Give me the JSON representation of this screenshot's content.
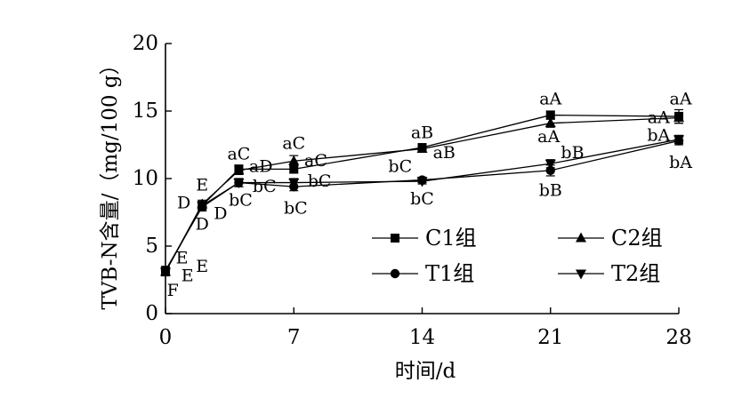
{
  "chart_data": {
    "type": "line",
    "title": "",
    "xlabel": "时间/d",
    "ylabel": "TVB-N含量/（mg/100 g）",
    "xlim": [
      0,
      28
    ],
    "ylim": [
      0,
      20
    ],
    "xticks": [
      0,
      7,
      14,
      21,
      28
    ],
    "xtick_labels": [
      "0",
      "7",
      "14",
      "21",
      "28"
    ],
    "yticks": [
      0,
      5,
      10,
      15,
      20
    ],
    "ytick_labels": [
      "0",
      "5",
      "10",
      "15",
      "20"
    ],
    "grid": false,
    "legend_placement": "bottom-right",
    "color": "#000000",
    "x": [
      0,
      2,
      4,
      7,
      14,
      21,
      28
    ],
    "series": [
      {
        "name": "C1组",
        "marker": "square",
        "values": [
          3.1,
          8.0,
          10.7,
          10.7,
          12.3,
          14.7,
          14.6
        ],
        "errors": [
          0.3,
          0.3,
          0.3,
          0.3,
          0.2,
          0.3,
          0.5
        ]
      },
      {
        "name": "C2组",
        "marker": "triangle-up",
        "values": [
          3.1,
          8.1,
          10.6,
          11.3,
          12.2,
          14.1,
          14.5
        ],
        "errors": [
          0.3,
          0.3,
          0.3,
          0.4,
          0.2,
          0.3,
          0.4
        ]
      },
      {
        "name": "T1组",
        "marker": "circle",
        "values": [
          3.2,
          7.9,
          9.7,
          9.4,
          9.9,
          10.6,
          12.8
        ],
        "errors": [
          0.3,
          0.3,
          0.3,
          0.3,
          0.2,
          0.4,
          0.3
        ]
      },
      {
        "name": "T2组",
        "marker": "triangle-down",
        "values": [
          3.1,
          8.0,
          9.7,
          9.7,
          9.8,
          11.1,
          12.9
        ],
        "errors": [
          0.3,
          0.3,
          0.3,
          0.3,
          0.2,
          0.3,
          0.3
        ]
      }
    ],
    "annotations": [
      {
        "text": "E",
        "x": 2.0,
        "y": 9.5
      },
      {
        "text": "D",
        "x": 1.0,
        "y": 8.2
      },
      {
        "text": "D",
        "x": 2.0,
        "y": 6.6
      },
      {
        "text": "D",
        "x": 3.0,
        "y": 7.4
      },
      {
        "text": "aC",
        "x": 4.0,
        "y": 11.8
      },
      {
        "text": "aD",
        "x": 5.2,
        "y": 10.9
      },
      {
        "text": "bC",
        "x": 5.4,
        "y": 9.4
      },
      {
        "text": "bC",
        "x": 4.1,
        "y": 8.4
      },
      {
        "text": "aC",
        "x": 7.0,
        "y": 12.6
      },
      {
        "text": "aC",
        "x": 8.2,
        "y": 11.3
      },
      {
        "text": "bC",
        "x": 8.4,
        "y": 9.8
      },
      {
        "text": "bC",
        "x": 7.1,
        "y": 7.8
      },
      {
        "text": "aB",
        "x": 14.0,
        "y": 13.4
      },
      {
        "text": "aB",
        "x": 15.2,
        "y": 11.9
      },
      {
        "text": "bC",
        "x": 12.8,
        "y": 10.9
      },
      {
        "text": "bC",
        "x": 14.0,
        "y": 8.5
      },
      {
        "text": "aA",
        "x": 21.0,
        "y": 15.9
      },
      {
        "text": "aA",
        "x": 20.9,
        "y": 13.1
      },
      {
        "text": "bB",
        "x": 22.2,
        "y": 11.9
      },
      {
        "text": "bB",
        "x": 21.0,
        "y": 9.1
      },
      {
        "text": "aA",
        "x": 28.1,
        "y": 15.9
      },
      {
        "text": "aA",
        "x": 26.9,
        "y": 14.5
      },
      {
        "text": "bA",
        "x": 26.9,
        "y": 13.2
      },
      {
        "text": "bA",
        "x": 28.1,
        "y": 11.2
      },
      {
        "text": "E",
        "x": 0.9,
        "y": 4.1
      },
      {
        "text": "E",
        "x": 1.2,
        "y": 2.8
      },
      {
        "text": "E",
        "x": 2.0,
        "y": 3.5
      },
      {
        "text": "F",
        "x": 0.4,
        "y": 1.7
      }
    ]
  }
}
